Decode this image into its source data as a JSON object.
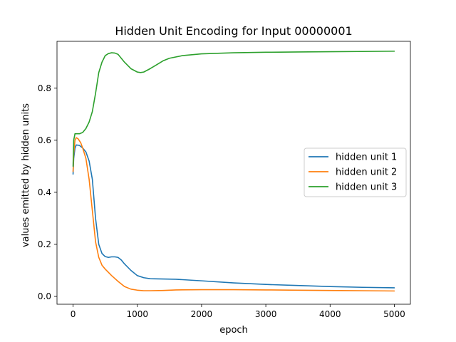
{
  "chart_data": {
    "type": "line",
    "title": "Hidden Unit Encoding for Input 00000001",
    "xlabel": "epoch",
    "ylabel": "values emitted by hidden units",
    "xlim": [
      -250,
      5250
    ],
    "ylim": [
      -0.03,
      0.98
    ],
    "xticks": [
      0,
      1000,
      2000,
      3000,
      4000,
      5000
    ],
    "xtick_labels": [
      "0",
      "1000",
      "2000",
      "3000",
      "4000",
      "5000"
    ],
    "yticks": [
      0.0,
      0.2,
      0.4,
      0.6,
      0.8
    ],
    "ytick_labels": [
      "0.0",
      "0.2",
      "0.4",
      "0.6",
      "0.8"
    ],
    "grid": false,
    "legend_position": "center-right",
    "series": [
      {
        "name": "hidden unit 1",
        "color": "#1f77b4",
        "x": [
          0,
          10,
          30,
          50,
          100,
          150,
          200,
          250,
          300,
          350,
          400,
          450,
          500,
          550,
          600,
          650,
          700,
          750,
          800,
          900,
          1000,
          1100,
          1200,
          1400,
          1600,
          2000,
          2500,
          3000,
          3500,
          4000,
          4500,
          5000
        ],
        "y": [
          0.47,
          0.53,
          0.57,
          0.582,
          0.58,
          0.57,
          0.555,
          0.52,
          0.45,
          0.3,
          0.2,
          0.165,
          0.153,
          0.15,
          0.152,
          0.152,
          0.15,
          0.14,
          0.125,
          0.1,
          0.08,
          0.072,
          0.068,
          0.067,
          0.066,
          0.06,
          0.052,
          0.046,
          0.042,
          0.038,
          0.035,
          0.033
        ]
      },
      {
        "name": "hidden unit 2",
        "color": "#ff7f0e",
        "x": [
          0,
          10,
          30,
          50,
          80,
          120,
          150,
          200,
          250,
          300,
          350,
          400,
          450,
          500,
          600,
          700,
          800,
          900,
          1000,
          1100,
          1200,
          1400,
          1600,
          2000,
          2500,
          3000,
          3500,
          4000,
          4500,
          5000
        ],
        "y": [
          0.48,
          0.55,
          0.6,
          0.61,
          0.605,
          0.59,
          0.57,
          0.53,
          0.45,
          0.33,
          0.21,
          0.15,
          0.12,
          0.105,
          0.08,
          0.058,
          0.038,
          0.028,
          0.024,
          0.022,
          0.022,
          0.023,
          0.025,
          0.026,
          0.026,
          0.025,
          0.024,
          0.023,
          0.022,
          0.021
        ]
      },
      {
        "name": "hidden unit 3",
        "color": "#2ca02c",
        "x": [
          0,
          10,
          30,
          50,
          100,
          150,
          200,
          250,
          300,
          350,
          400,
          450,
          500,
          550,
          600,
          650,
          700,
          750,
          800,
          900,
          1000,
          1050,
          1100,
          1200,
          1300,
          1400,
          1500,
          1700,
          2000,
          2500,
          3000,
          3500,
          4000,
          4500,
          5000
        ],
        "y": [
          0.5,
          0.6,
          0.625,
          0.625,
          0.625,
          0.63,
          0.645,
          0.67,
          0.71,
          0.78,
          0.86,
          0.9,
          0.925,
          0.933,
          0.936,
          0.935,
          0.93,
          0.915,
          0.9,
          0.875,
          0.862,
          0.86,
          0.862,
          0.875,
          0.89,
          0.905,
          0.915,
          0.925,
          0.932,
          0.936,
          0.938,
          0.939,
          0.94,
          0.941,
          0.942
        ]
      }
    ]
  }
}
